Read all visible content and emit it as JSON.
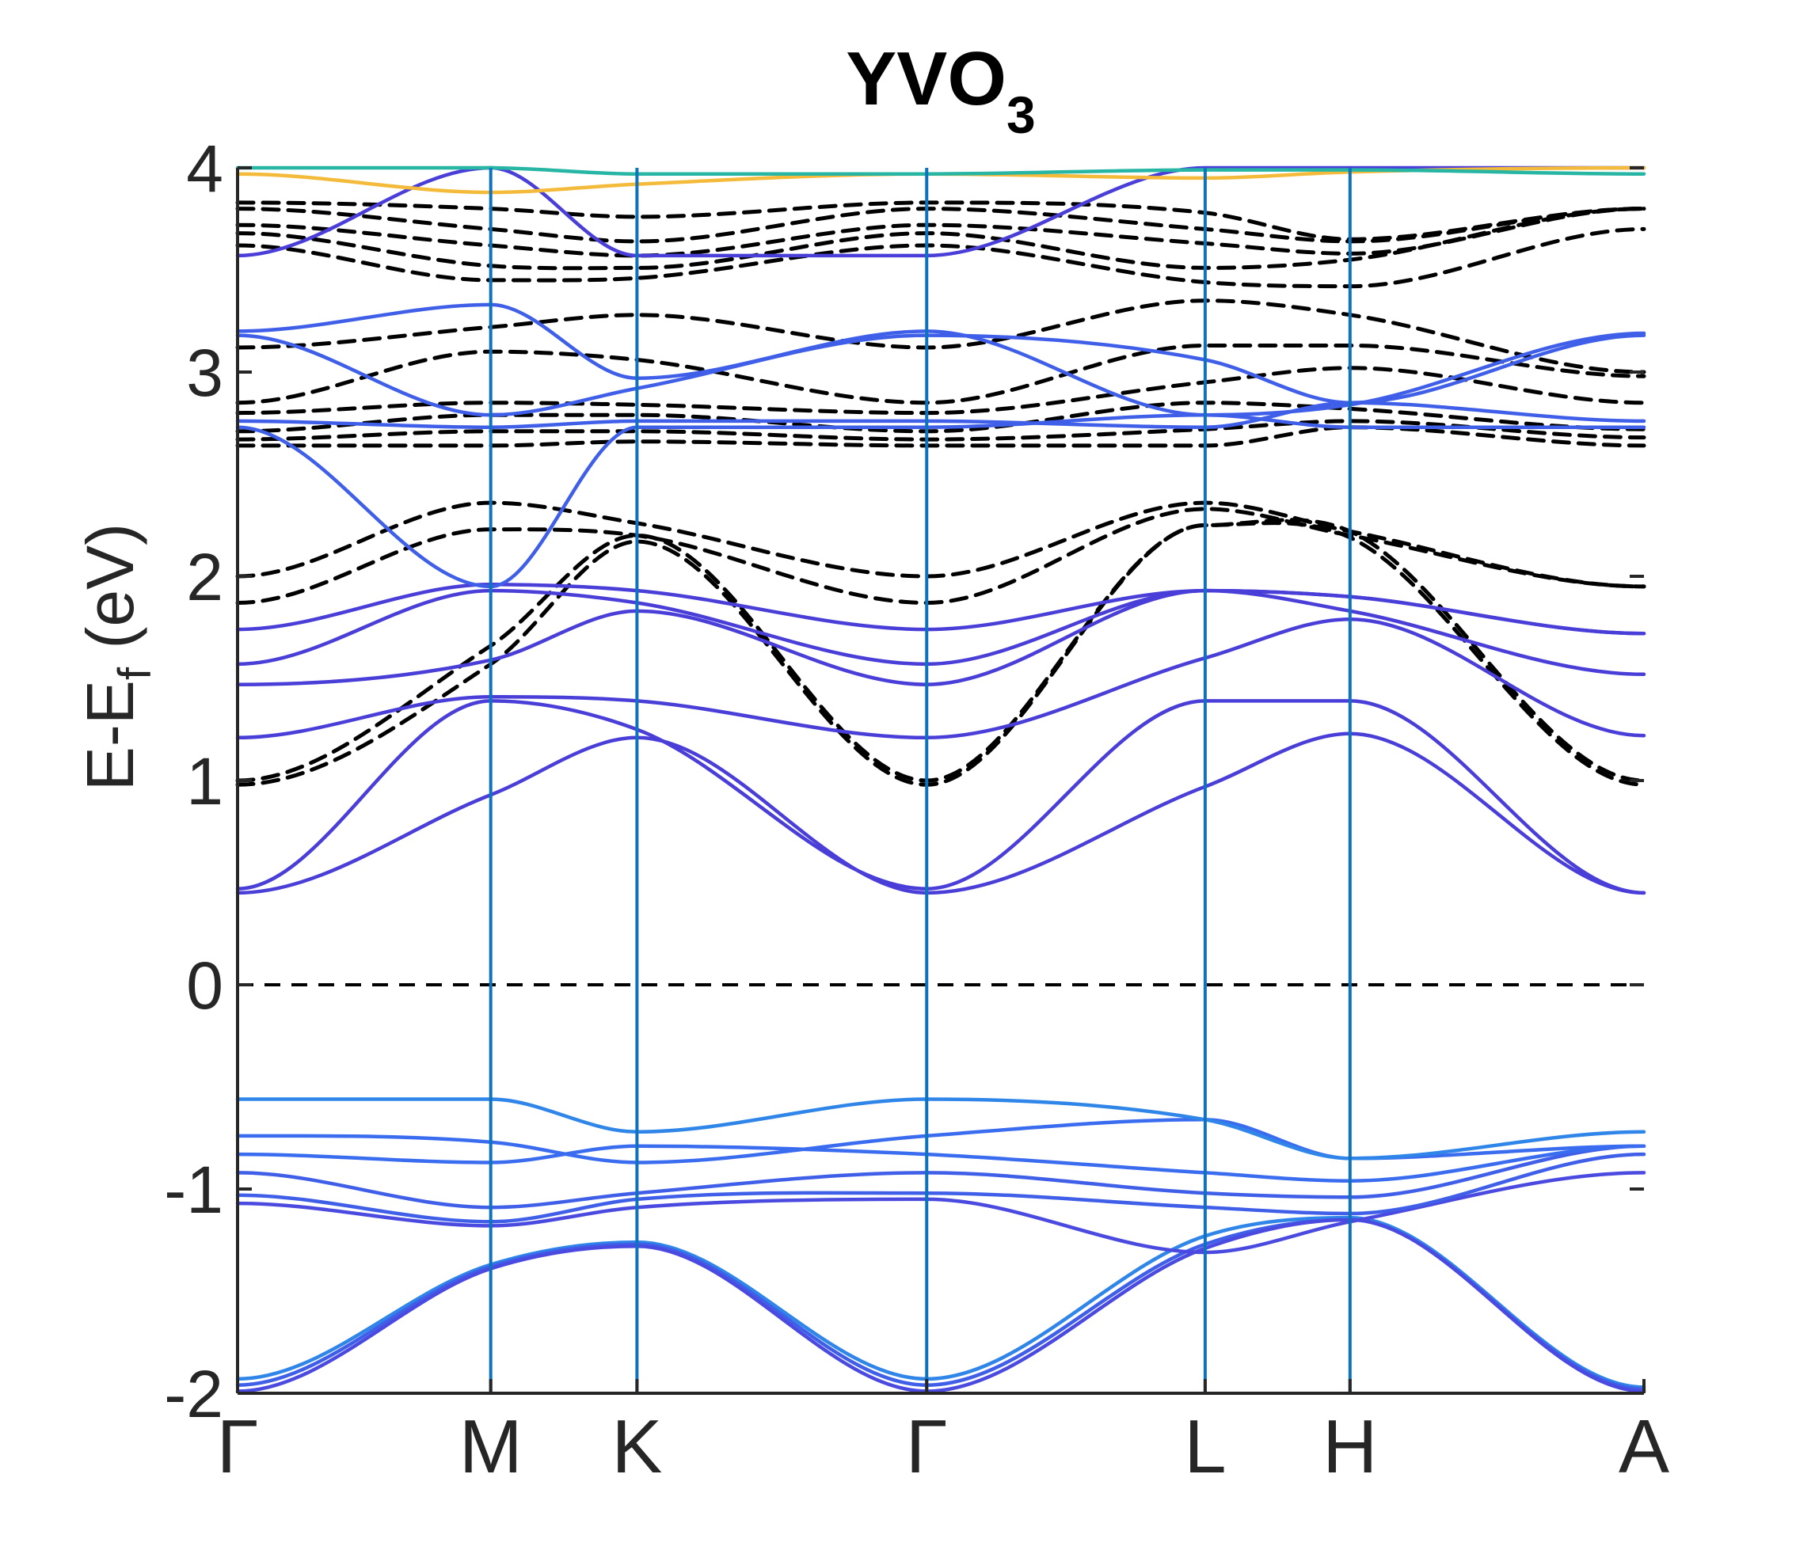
{
  "chart_data": {
    "type": "line",
    "title": {
      "main": "YVO",
      "sub": "3"
    },
    "ylabel": {
      "main": "E-E",
      "sub": "f",
      "rest": " (eV)"
    },
    "xlabel": "",
    "ylim": [
      -2,
      4
    ],
    "yticks": [
      -2,
      -1,
      0,
      1,
      2,
      3,
      4
    ],
    "ytick_labels": [
      "-2",
      "-1",
      "0",
      "1",
      "2",
      "3",
      "4"
    ],
    "kpoints": [
      {
        "label": "Γ",
        "x": 0.0
      },
      {
        "label": "M",
        "x": 0.18
      },
      {
        "label": "K",
        "x": 0.284
      },
      {
        "label": "Γ",
        "x": 0.49
      },
      {
        "label": "L",
        "x": 0.688
      },
      {
        "label": "H",
        "x": 0.791
      },
      {
        "label": "A",
        "x": 1.0
      }
    ],
    "fermi_level": 0,
    "grid": false,
    "series": [
      {
        "group": "projected",
        "color": "#2f86e8",
        "x": [
          0,
          0.18,
          0.284,
          0.49,
          0.688,
          0.791,
          1.0
        ],
        "y": [
          -1.93,
          -1.37,
          -1.26,
          -1.93,
          -1.23,
          -1.14,
          -1.97
        ]
      },
      {
        "group": "projected",
        "color": "#3f5fe8",
        "x": [
          0,
          0.18,
          0.284,
          0.49,
          0.688,
          0.791,
          1.0
        ],
        "y": [
          -1.96,
          -1.38,
          -1.27,
          -1.96,
          -1.27,
          -1.15,
          -1.98
        ]
      },
      {
        "group": "projected",
        "color": "#4a4ae0",
        "x": [
          0,
          0.18,
          0.284,
          0.49,
          0.688,
          0.791,
          1.0
        ],
        "y": [
          -1.99,
          -1.39,
          -1.28,
          -1.99,
          -1.29,
          -1.15,
          -1.99
        ]
      },
      {
        "group": "projected",
        "color": "#4a4ae0",
        "x": [
          0,
          0.18,
          0.284,
          0.49,
          0.688,
          0.791,
          1.0
        ],
        "y": [
          -1.07,
          -1.18,
          -1.09,
          -1.05,
          -1.31,
          -1.16,
          -0.92
        ]
      },
      {
        "group": "projected",
        "color": "#3f5fe8",
        "x": [
          0,
          0.18,
          0.284,
          0.49,
          0.688,
          0.791,
          1.0
        ],
        "y": [
          -1.03,
          -1.16,
          -1.05,
          -1.02,
          -1.09,
          -1.12,
          -0.83
        ]
      },
      {
        "group": "projected",
        "color": "#3f5fe8",
        "x": [
          0,
          0.18,
          0.284,
          0.49,
          0.688,
          0.791,
          1.0
        ],
        "y": [
          -0.92,
          -1.09,
          -1.02,
          -0.92,
          -1.02,
          -1.04,
          -0.79
        ]
      },
      {
        "group": "projected",
        "color": "#3a6cf0",
        "x": [
          0,
          0.18,
          0.284,
          0.49,
          0.688,
          0.791,
          1.0
        ],
        "y": [
          -0.83,
          -0.87,
          -0.79,
          -0.83,
          -0.92,
          -0.96,
          -0.79
        ]
      },
      {
        "group": "projected",
        "color": "#3a6cf0",
        "x": [
          0,
          0.18,
          0.284,
          0.49,
          0.688,
          0.791,
          1.0
        ],
        "y": [
          -0.74,
          -0.77,
          -0.87,
          -0.74,
          -0.66,
          -0.85,
          -0.79
        ]
      },
      {
        "group": "projected",
        "color": "#2f86e8",
        "x": [
          0,
          0.18,
          0.284,
          0.49,
          0.688,
          0.791,
          1.0
        ],
        "y": [
          -0.56,
          -0.56,
          -0.72,
          -0.56,
          -0.66,
          -0.85,
          -0.72
        ]
      },
      {
        "group": "projected",
        "color": "#4a3ed8",
        "x": [
          0,
          0.18,
          0.284,
          0.49,
          0.688,
          0.791,
          1.0
        ],
        "y": [
          0.45,
          0.93,
          1.21,
          0.45,
          0.97,
          1.23,
          0.45
        ]
      },
      {
        "group": "projected",
        "color": "#4a3ed8",
        "x": [
          0,
          0.18,
          0.284,
          0.49,
          0.688,
          0.791,
          1.0
        ],
        "y": [
          0.47,
          1.39,
          1.25,
          0.47,
          1.39,
          1.39,
          0.45
        ]
      },
      {
        "group": "projected",
        "color": "#4a3ed8",
        "x": [
          0,
          0.18,
          0.284,
          0.49,
          0.688,
          0.791,
          1.0
        ],
        "y": [
          1.21,
          1.41,
          1.39,
          1.21,
          1.6,
          1.79,
          1.22
        ]
      },
      {
        "group": "projected",
        "color": "#4a3ed8",
        "x": [
          0,
          0.18,
          0.284,
          0.49,
          0.688,
          0.791,
          1.0
        ],
        "y": [
          1.47,
          1.59,
          1.83,
          1.47,
          1.93,
          1.83,
          1.52
        ]
      },
      {
        "group": "projected",
        "color": "#4a3ed8",
        "x": [
          0,
          0.18,
          0.284,
          0.49,
          0.688,
          0.791,
          1.0
        ],
        "y": [
          1.57,
          1.93,
          1.87,
          1.57,
          1.93,
          1.9,
          1.72
        ]
      },
      {
        "group": "projected",
        "color": "#4a3ed8",
        "x": [
          0,
          0.18,
          0.284,
          0.49,
          0.688,
          0.791,
          1.0
        ],
        "y": [
          1.74,
          1.96,
          1.93,
          1.74,
          1.93,
          1.9,
          1.72
        ]
      },
      {
        "group": "projected",
        "color": "#3f5fe8",
        "x": [
          0,
          0.18,
          0.284,
          0.49,
          0.688,
          0.791,
          1.0
        ],
        "y": [
          2.73,
          1.95,
          2.73,
          2.73,
          2.79,
          2.73,
          2.73
        ]
      },
      {
        "group": "projected",
        "color": "#3f5fe8",
        "x": [
          0,
          0.18,
          0.284,
          0.49,
          0.688,
          0.791,
          1.0
        ],
        "y": [
          2.76,
          2.73,
          2.76,
          2.76,
          2.73,
          2.85,
          2.76
        ]
      },
      {
        "group": "projected",
        "color": "#3f5fe8",
        "x": [
          0,
          0.18,
          0.284,
          0.49,
          0.688,
          0.791,
          1.0
        ],
        "y": [
          3.18,
          2.79,
          2.92,
          3.18,
          3.06,
          2.85,
          3.18
        ]
      },
      {
        "group": "projected",
        "color": "#3f5fe8",
        "x": [
          0,
          0.18,
          0.284,
          0.49,
          0.688,
          0.791,
          1.0
        ],
        "y": [
          3.2,
          3.33,
          2.97,
          3.2,
          2.79,
          2.84,
          3.19
        ]
      },
      {
        "group": "projected",
        "color": "#4a3ed8",
        "x": [
          0,
          0.18,
          0.284,
          0.49,
          0.688,
          0.791,
          1.0
        ],
        "y": [
          3.57,
          4.0,
          3.57,
          3.57,
          4.0,
          4.0,
          4.0
        ]
      },
      {
        "group": "projected",
        "color": "#f4ba3a",
        "x": [
          0,
          0.18,
          0.284,
          0.49,
          0.688,
          0.791,
          1.0
        ],
        "y": [
          3.97,
          3.88,
          3.92,
          3.97,
          3.95,
          3.98,
          4.0
        ]
      },
      {
        "group": "projected",
        "color": "#27b5a4",
        "x": [
          0,
          0.18,
          0.284,
          0.49,
          0.688,
          0.791,
          1.0
        ],
        "y": [
          4.0,
          4.0,
          3.97,
          3.97,
          3.99,
          3.99,
          3.97
        ]
      },
      {
        "group": "reference",
        "color": "#000000",
        "x": [
          0,
          0.18,
          0.284,
          0.49,
          0.688,
          0.791,
          1.0
        ],
        "y": [
          0.98,
          1.57,
          2.17,
          0.98,
          2.25,
          2.19,
          0.98
        ]
      },
      {
        "group": "reference",
        "color": "#000000",
        "x": [
          0,
          0.18,
          0.284,
          0.49,
          0.688,
          0.791,
          1.0
        ],
        "y": [
          1.0,
          1.66,
          2.2,
          1.0,
          2.25,
          2.22,
          1.0
        ]
      },
      {
        "group": "reference",
        "color": "#000000",
        "x": [
          0,
          0.18,
          0.284,
          0.49,
          0.688,
          0.791,
          1.0
        ],
        "y": [
          1.87,
          2.23,
          2.2,
          1.87,
          2.33,
          2.2,
          1.95
        ]
      },
      {
        "group": "reference",
        "color": "#000000",
        "x": [
          0,
          0.18,
          0.284,
          0.49,
          0.688,
          0.791,
          1.0
        ],
        "y": [
          2.0,
          2.36,
          2.26,
          2.0,
          2.36,
          2.22,
          1.95
        ]
      },
      {
        "group": "reference",
        "color": "#000000",
        "x": [
          0,
          0.18,
          0.284,
          0.49,
          0.688,
          0.791,
          1.0
        ],
        "y": [
          2.64,
          2.64,
          2.66,
          2.64,
          2.64,
          2.73,
          2.64
        ]
      },
      {
        "group": "reference",
        "color": "#000000",
        "x": [
          0,
          0.18,
          0.284,
          0.49,
          0.688,
          0.791,
          1.0
        ],
        "y": [
          2.67,
          2.71,
          2.71,
          2.67,
          2.72,
          2.76,
          2.68
        ]
      },
      {
        "group": "reference",
        "color": "#000000",
        "x": [
          0,
          0.18,
          0.284,
          0.49,
          0.688,
          0.791,
          1.0
        ],
        "y": [
          2.71,
          2.79,
          2.79,
          2.71,
          2.85,
          2.82,
          2.72
        ]
      },
      {
        "group": "reference",
        "color": "#000000",
        "x": [
          0,
          0.18,
          0.284,
          0.49,
          0.688,
          0.791,
          1.0
        ],
        "y": [
          2.8,
          2.85,
          2.84,
          2.8,
          2.95,
          3.02,
          2.85
        ]
      },
      {
        "group": "reference",
        "color": "#000000",
        "x": [
          0,
          0.18,
          0.284,
          0.49,
          0.688,
          0.791,
          1.0
        ],
        "y": [
          2.85,
          3.1,
          3.06,
          2.85,
          3.13,
          3.13,
          2.98
        ]
      },
      {
        "group": "reference",
        "color": "#000000",
        "x": [
          0,
          0.18,
          0.284,
          0.49,
          0.688,
          0.791,
          1.0
        ],
        "y": [
          3.12,
          3.22,
          3.28,
          3.12,
          3.35,
          3.28,
          3.0
        ]
      },
      {
        "group": "reference",
        "color": "#000000",
        "x": [
          0,
          0.18,
          0.284,
          0.49,
          0.688,
          0.791,
          1.0
        ],
        "y": [
          3.62,
          3.45,
          3.46,
          3.62,
          3.44,
          3.42,
          3.7
        ]
      },
      {
        "group": "reference",
        "color": "#000000",
        "x": [
          0,
          0.18,
          0.284,
          0.49,
          0.688,
          0.791,
          1.0
        ],
        "y": [
          3.68,
          3.52,
          3.51,
          3.68,
          3.51,
          3.55,
          3.8
        ]
      },
      {
        "group": "reference",
        "color": "#000000",
        "x": [
          0,
          0.18,
          0.284,
          0.49,
          0.688,
          0.791,
          1.0
        ],
        "y": [
          3.72,
          3.62,
          3.57,
          3.72,
          3.63,
          3.58,
          3.8
        ]
      },
      {
        "group": "reference",
        "color": "#000000",
        "x": [
          0,
          0.18,
          0.284,
          0.49,
          0.688,
          0.791,
          1.0
        ],
        "y": [
          3.8,
          3.7,
          3.64,
          3.8,
          3.7,
          3.64,
          3.8
        ]
      },
      {
        "group": "reference",
        "color": "#000000",
        "x": [
          0,
          0.18,
          0.284,
          0.49,
          0.688,
          0.791,
          1.0
        ],
        "y": [
          3.83,
          3.8,
          3.76,
          3.83,
          3.78,
          3.65,
          3.8
        ]
      }
    ]
  }
}
